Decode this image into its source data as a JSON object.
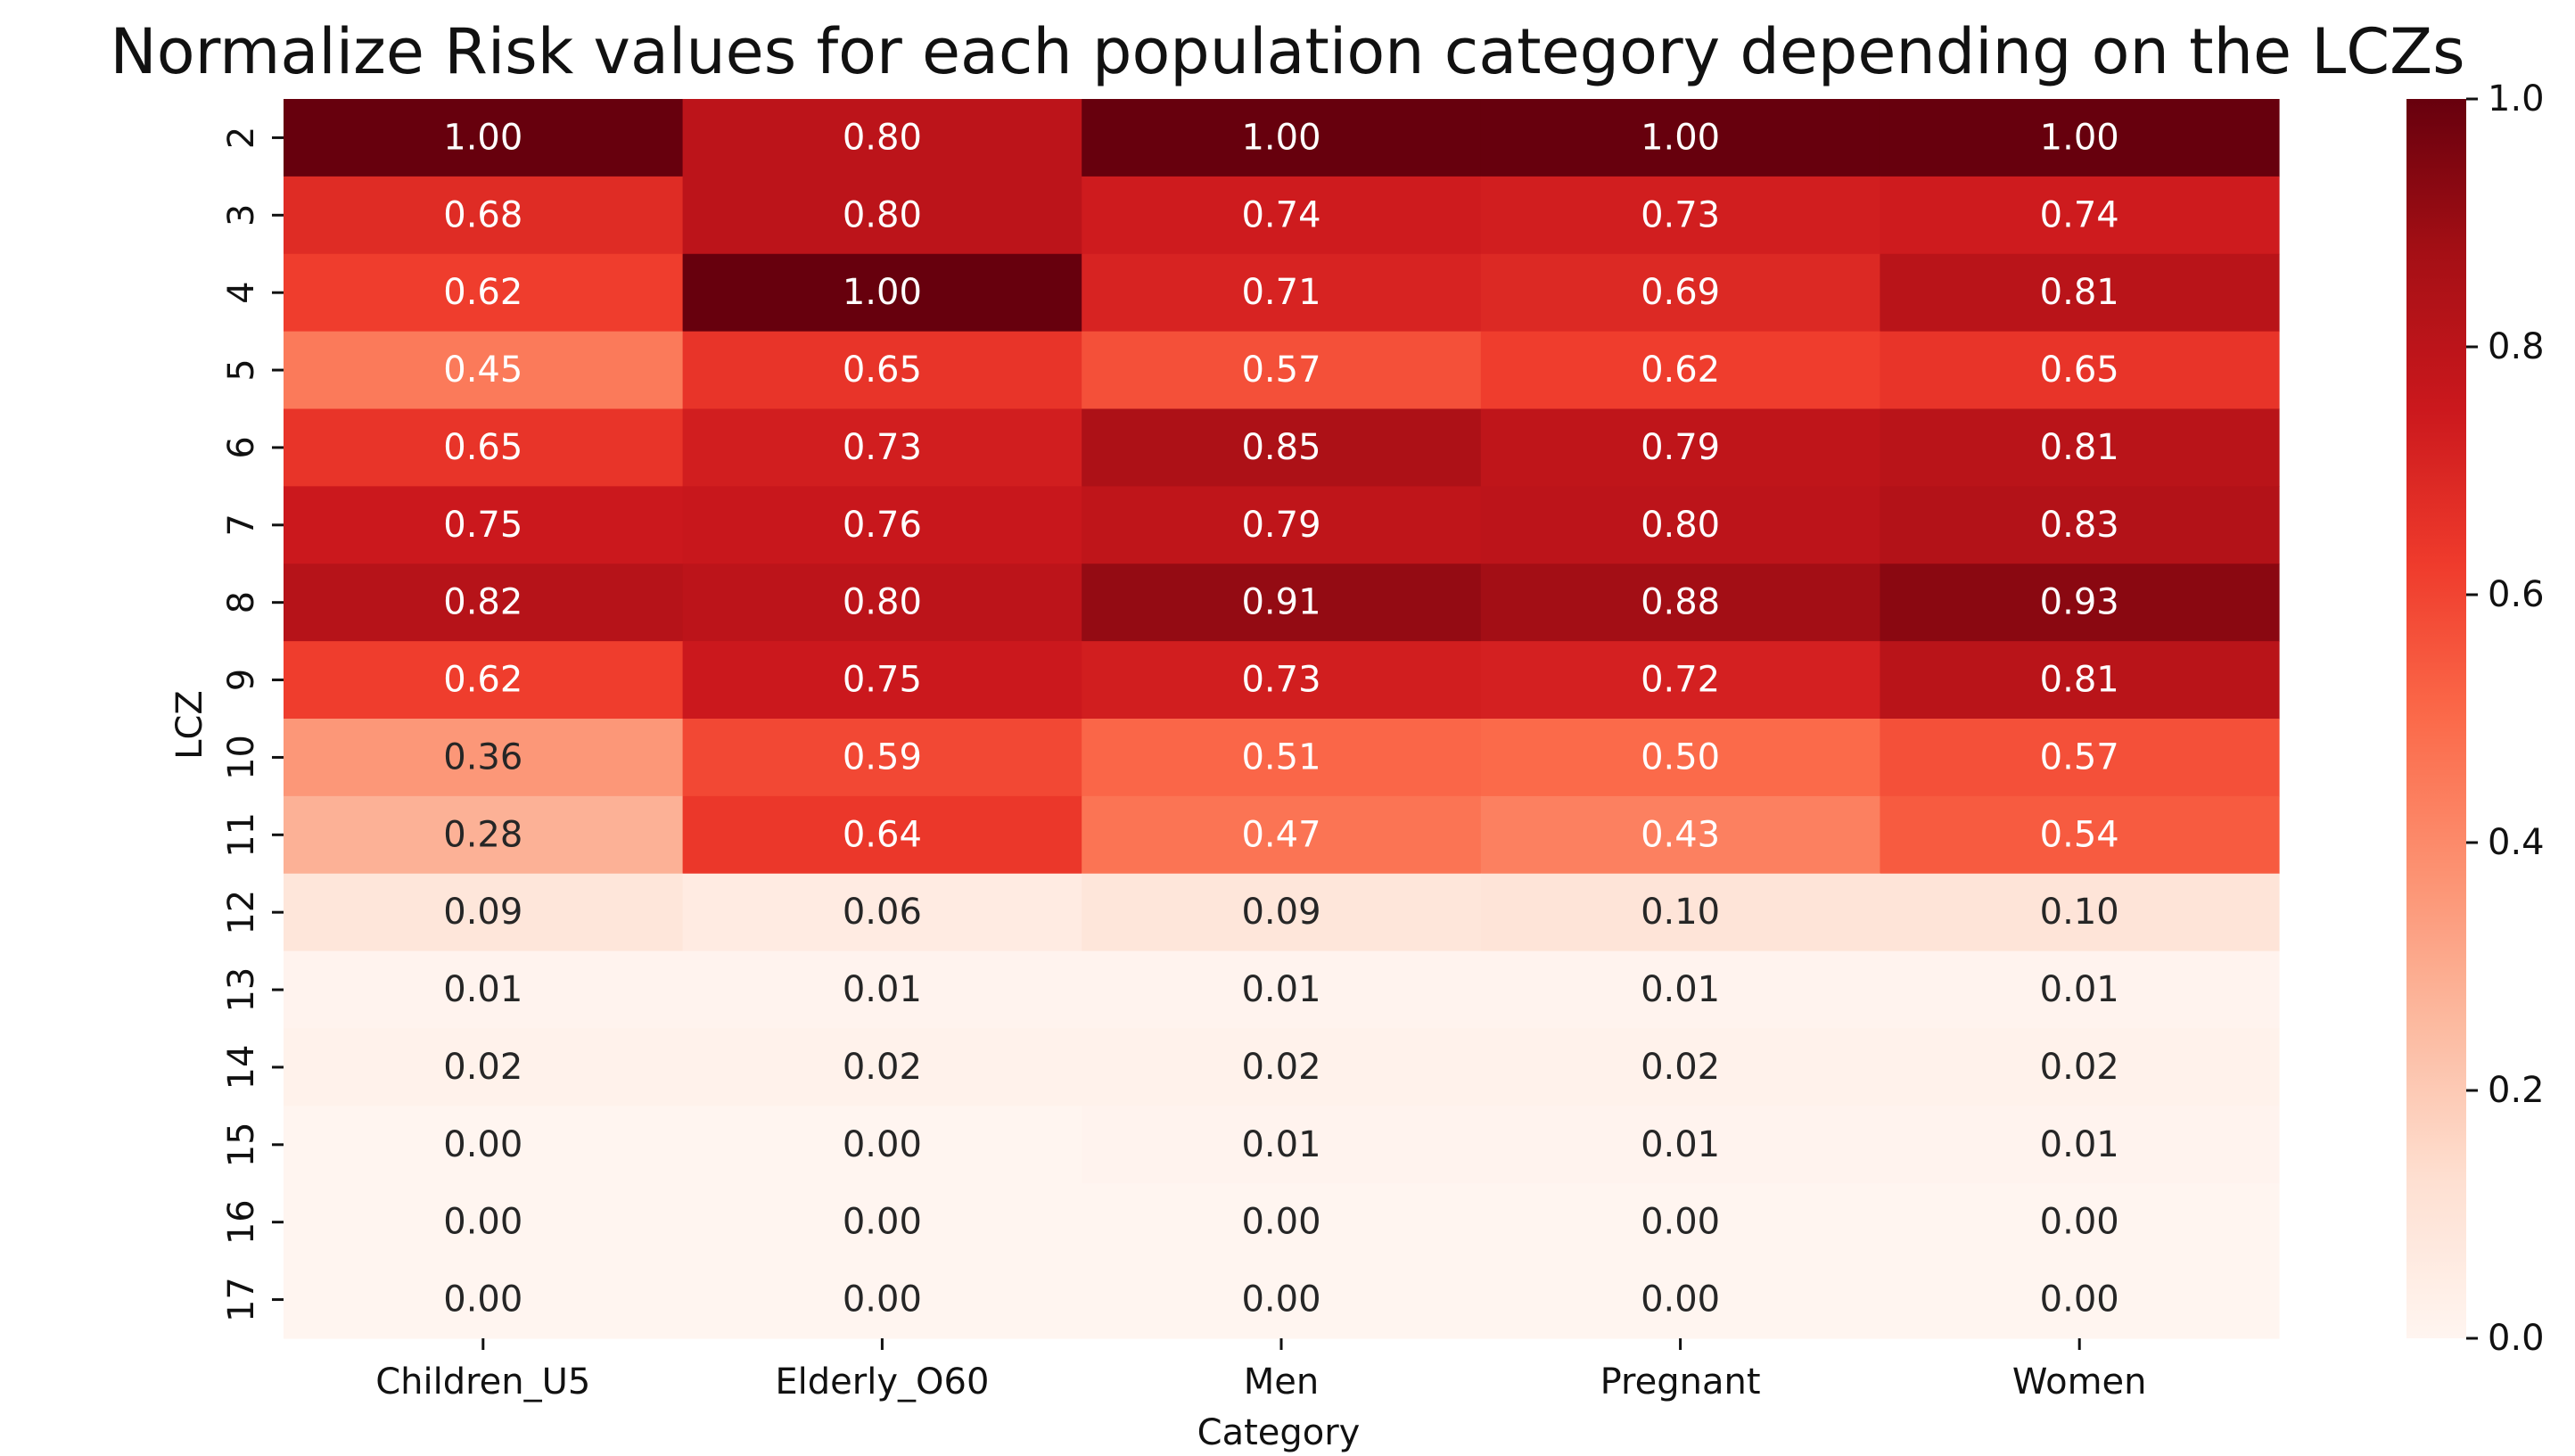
{
  "chart_data": {
    "type": "heatmap",
    "title": "Normalize Risk values for each population category depending on the LCZs",
    "xlabel": "Category",
    "ylabel": "LCZ",
    "x_categories": [
      "Children_U5",
      "Elderly_O60",
      "Men",
      "Pregnant",
      "Women"
    ],
    "y_categories": [
      "2",
      "3",
      "4",
      "5",
      "6",
      "7",
      "8",
      "9",
      "10",
      "11",
      "12",
      "13",
      "14",
      "15",
      "16",
      "17"
    ],
    "values": [
      [
        1.0,
        0.8,
        1.0,
        1.0,
        1.0
      ],
      [
        0.68,
        0.8,
        0.74,
        0.73,
        0.74
      ],
      [
        0.62,
        1.0,
        0.71,
        0.69,
        0.81
      ],
      [
        0.45,
        0.65,
        0.57,
        0.62,
        0.65
      ],
      [
        0.65,
        0.73,
        0.85,
        0.79,
        0.81
      ],
      [
        0.75,
        0.76,
        0.79,
        0.8,
        0.83
      ],
      [
        0.82,
        0.8,
        0.91,
        0.88,
        0.93
      ],
      [
        0.62,
        0.75,
        0.73,
        0.72,
        0.81
      ],
      [
        0.36,
        0.59,
        0.51,
        0.5,
        0.57
      ],
      [
        0.28,
        0.64,
        0.47,
        0.43,
        0.54
      ],
      [
        0.09,
        0.06,
        0.09,
        0.1,
        0.1
      ],
      [
        0.01,
        0.01,
        0.01,
        0.01,
        0.01
      ],
      [
        0.02,
        0.02,
        0.02,
        0.02,
        0.02
      ],
      [
        0.0,
        0.0,
        0.01,
        0.01,
        0.01
      ],
      [
        0.0,
        0.0,
        0.0,
        0.0,
        0.0
      ],
      [
        0.0,
        0.0,
        0.0,
        0.0,
        0.0
      ]
    ],
    "value_format_decimals": 2,
    "colorbar": {
      "range": [
        0.0,
        1.0
      ],
      "ticks": [
        0.0,
        0.2,
        0.4,
        0.6,
        0.8,
        1.0
      ],
      "tick_labels": [
        "0.0",
        "0.2",
        "0.4",
        "0.6",
        "0.8",
        "1.0"
      ],
      "colormap": "Reds",
      "colormap_stops": [
        "#fff5f0",
        "#fee0d2",
        "#fcbba1",
        "#fc9272",
        "#fb6a4a",
        "#ef3b2c",
        "#cb181d",
        "#a50f15",
        "#67000d"
      ]
    }
  }
}
